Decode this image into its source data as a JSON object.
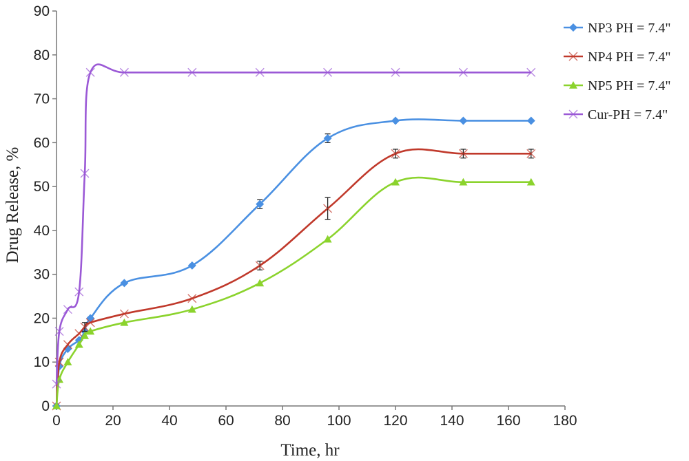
{
  "chart_data": {
    "type": "line",
    "xlabel": "Time, hr",
    "ylabel": "Drug Release, %",
    "xlim": [
      0,
      180
    ],
    "ylim": [
      0,
      90
    ],
    "xticks": [
      0,
      20,
      40,
      60,
      80,
      100,
      120,
      140,
      160,
      180
    ],
    "yticks": [
      0,
      10,
      20,
      30,
      40,
      50,
      60,
      70,
      80,
      90
    ],
    "grid": false,
    "legend_position": "top-right",
    "series": [
      {
        "name": "NP3 PH = 7.4\"",
        "color": "#4a90e2",
        "marker": "diamond",
        "x": [
          0,
          1,
          4,
          8,
          10,
          12,
          24,
          48,
          72,
          96,
          120,
          144,
          168
        ],
        "y": [
          0,
          9,
          13,
          15,
          17,
          20,
          28,
          32,
          46,
          61,
          65,
          65,
          65
        ],
        "err": [
          0,
          0,
          0,
          0,
          0,
          0,
          0,
          0,
          1,
          1,
          0,
          0,
          0
        ]
      },
      {
        "name": "NP4 PH = 7.4\"",
        "color": "#c0392b",
        "marker": "x",
        "x": [
          0,
          1,
          4,
          8,
          10,
          12,
          24,
          48,
          72,
          96,
          120,
          144,
          168
        ],
        "y": [
          0,
          10,
          14,
          16.5,
          18,
          19,
          21,
          24.5,
          32,
          45,
          57.5,
          57.5,
          57.5
        ],
        "err": [
          0,
          0,
          0,
          0,
          1,
          0,
          0,
          0,
          1,
          2.5,
          1,
          1,
          1
        ]
      },
      {
        "name": "NP5 PH = 7.4\"",
        "color": "#8bd32d",
        "marker": "triangle",
        "x": [
          0,
          1,
          4,
          8,
          10,
          12,
          24,
          48,
          72,
          96,
          120,
          144,
          168
        ],
        "y": [
          0,
          6,
          10,
          14,
          16,
          17,
          19,
          22,
          28,
          38,
          51,
          51,
          51
        ],
        "err": [
          0,
          0,
          0,
          0,
          0,
          0,
          0,
          0,
          0,
          0,
          0,
          0,
          0
        ]
      },
      {
        "name": "Cur-PH = 7.4\"",
        "color": "#9b59d6",
        "marker": "x",
        "x": [
          0,
          1,
          4,
          8,
          10,
          12,
          24,
          48,
          72,
          96,
          120,
          144,
          168
        ],
        "y": [
          5,
          17,
          22,
          26,
          53,
          76,
          76,
          76,
          76,
          76,
          76,
          76,
          76
        ],
        "err": [
          0,
          0,
          0,
          0,
          0,
          0,
          0,
          0,
          0,
          0,
          0,
          0,
          0
        ]
      }
    ]
  }
}
